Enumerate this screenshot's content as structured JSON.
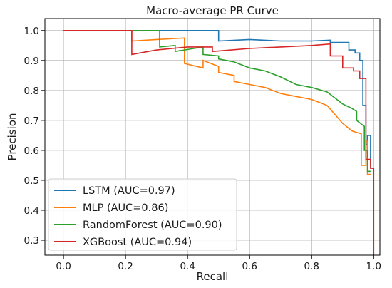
{
  "chart_data": {
    "type": "line",
    "title": "Macro-average PR Curve",
    "xlabel": "Recall",
    "ylabel": "Precision",
    "xlim": [
      -0.06,
      1.02
    ],
    "ylim": [
      0.25,
      1.04
    ],
    "xticks": [
      0.0,
      0.2,
      0.4,
      0.6,
      0.8,
      1.0
    ],
    "xtick_labels": [
      "0.0",
      "0.2",
      "0.4",
      "0.6",
      "0.8",
      "1.0"
    ],
    "yticks": [
      0.3,
      0.4,
      0.5,
      0.6,
      0.7,
      0.8,
      0.9,
      1.0
    ],
    "ytick_labels": [
      "0.3",
      "0.4",
      "0.5",
      "0.6",
      "0.7",
      "0.8",
      "0.9",
      "1.0"
    ],
    "grid": true,
    "legend_position": "bottom-left",
    "series": [
      {
        "name": "LSTM (AUC=0.97)",
        "color": "#1f77b4",
        "x": [
          0.0,
          0.5,
          0.5,
          0.6,
          0.7,
          0.8,
          0.86,
          0.86,
          0.92,
          0.92,
          0.94,
          0.94,
          0.955,
          0.955,
          0.965,
          0.965,
          0.975,
          0.975,
          0.98,
          0.98,
          0.99,
          0.99
        ],
        "y": [
          1.0,
          1.0,
          0.965,
          0.97,
          0.965,
          0.965,
          0.968,
          0.96,
          0.96,
          0.935,
          0.935,
          0.925,
          0.925,
          0.9,
          0.9,
          0.75,
          0.75,
          0.62,
          0.62,
          0.65,
          0.65,
          0.55
        ]
      },
      {
        "name": "MLP (AUC=0.86)",
        "color": "#ff7f0e",
        "x": [
          0.0,
          0.22,
          0.22,
          0.3,
          0.39,
          0.39,
          0.45,
          0.45,
          0.5,
          0.5,
          0.55,
          0.55,
          0.6,
          0.65,
          0.7,
          0.75,
          0.8,
          0.85,
          0.9,
          0.93,
          0.96,
          0.96,
          0.975,
          0.975,
          0.98,
          0.98,
          0.99
        ],
        "y": [
          1.0,
          1.0,
          0.965,
          0.97,
          0.975,
          0.89,
          0.875,
          0.9,
          0.88,
          0.86,
          0.85,
          0.83,
          0.82,
          0.81,
          0.79,
          0.78,
          0.77,
          0.75,
          0.69,
          0.665,
          0.655,
          0.55,
          0.55,
          0.63,
          0.63,
          0.52,
          0.52
        ]
      },
      {
        "name": "RandomForest (AUC=0.90)",
        "color": "#2ca02c",
        "x": [
          0.0,
          0.31,
          0.31,
          0.36,
          0.36,
          0.42,
          0.45,
          0.45,
          0.5,
          0.5,
          0.55,
          0.6,
          0.65,
          0.7,
          0.75,
          0.8,
          0.85,
          0.9,
          0.93,
          0.945,
          0.945,
          0.97,
          0.97,
          0.98,
          0.98,
          0.99
        ],
        "y": [
          1.0,
          1.0,
          0.945,
          0.95,
          0.93,
          0.94,
          0.945,
          0.92,
          0.915,
          0.905,
          0.895,
          0.875,
          0.865,
          0.845,
          0.82,
          0.81,
          0.795,
          0.755,
          0.74,
          0.73,
          0.7,
          0.68,
          0.6,
          0.6,
          0.53,
          0.53
        ]
      },
      {
        "name": "XGBoost (AUC=0.94)",
        "color": "#d62728",
        "x": [
          0.0,
          0.22,
          0.22,
          0.3,
          0.4,
          0.48,
          0.48,
          0.6,
          0.7,
          0.8,
          0.86,
          0.86,
          0.9,
          0.9,
          0.935,
          0.935,
          0.955,
          0.955,
          0.975,
          0.975,
          0.99,
          0.99,
          1.0,
          1.0
        ],
        "y": [
          1.0,
          1.0,
          0.92,
          0.935,
          0.945,
          0.945,
          0.93,
          0.94,
          0.945,
          0.95,
          0.955,
          0.915,
          0.915,
          0.875,
          0.875,
          0.865,
          0.865,
          0.84,
          0.84,
          0.57,
          0.57,
          0.54,
          0.54,
          0.25
        ]
      }
    ]
  }
}
